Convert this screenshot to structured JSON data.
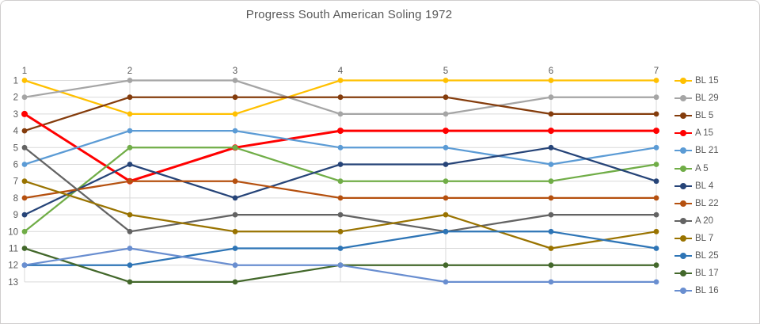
{
  "chart_data": {
    "type": "line",
    "title": "Progress South American Soling 1972",
    "x_ticks": [
      "1",
      "2",
      "3",
      "4",
      "5",
      "6",
      "7"
    ],
    "y_ticks": [
      "1",
      "2",
      "3",
      "4",
      "5",
      "6",
      "7",
      "8",
      "9",
      "10",
      "11",
      "12",
      "13"
    ],
    "x_axis_position": "top",
    "y_axis_inverted": true,
    "y_range": [
      1,
      13
    ],
    "grid": true,
    "legend_position": "right",
    "series": [
      {
        "name": "BL 15",
        "color": "#FFC000",
        "values": [
          1,
          3,
          3,
          1,
          1,
          1,
          1
        ],
        "emphasis": false
      },
      {
        "name": "BL 29",
        "color": "#A5A5A5",
        "values": [
          2,
          1,
          1,
          3,
          3,
          2,
          2
        ],
        "emphasis": false
      },
      {
        "name": "BL 5",
        "color": "#843C0C",
        "values": [
          4,
          2,
          2,
          2,
          2,
          3,
          3
        ],
        "emphasis": false
      },
      {
        "name": "A 15",
        "color": "#FF0000",
        "values": [
          3,
          7,
          5,
          4,
          4,
          4,
          4
        ],
        "emphasis": true
      },
      {
        "name": "BL 21",
        "color": "#5B9BD5",
        "values": [
          6,
          4,
          4,
          5,
          5,
          6,
          5
        ],
        "emphasis": false
      },
      {
        "name": "A 5",
        "color": "#70AD47",
        "values": [
          10,
          5,
          5,
          7,
          7,
          7,
          6
        ],
        "emphasis": false
      },
      {
        "name": "BL 4",
        "color": "#264478",
        "values": [
          9,
          6,
          8,
          6,
          6,
          5,
          7
        ],
        "emphasis": false
      },
      {
        "name": "BL 22",
        "color": "#B5500F",
        "values": [
          8,
          7,
          7,
          8,
          8,
          8,
          8
        ],
        "emphasis": false
      },
      {
        "name": "A 20",
        "color": "#636363",
        "values": [
          5,
          10,
          9,
          9,
          10,
          9,
          9
        ],
        "emphasis": false
      },
      {
        "name": "BL 7",
        "color": "#997300",
        "values": [
          7,
          9,
          10,
          10,
          9,
          11,
          10
        ],
        "emphasis": false
      },
      {
        "name": "BL 25",
        "color": "#2E75B6",
        "values": [
          12,
          12,
          11,
          11,
          10,
          10,
          11
        ],
        "emphasis": false
      },
      {
        "name": "BL 17",
        "color": "#43682B",
        "values": [
          11,
          13,
          13,
          12,
          12,
          12,
          12
        ],
        "emphasis": false
      },
      {
        "name": "BL 16",
        "color": "#698ED0",
        "values": [
          12,
          11,
          12,
          12,
          13,
          13,
          13
        ],
        "emphasis": false
      }
    ]
  },
  "colors": {
    "gridline": "#D9D9D9",
    "axis_text": "#595959",
    "title_text": "#595959",
    "background": "#FFFFFF",
    "window_border": "#D0CECE"
  }
}
